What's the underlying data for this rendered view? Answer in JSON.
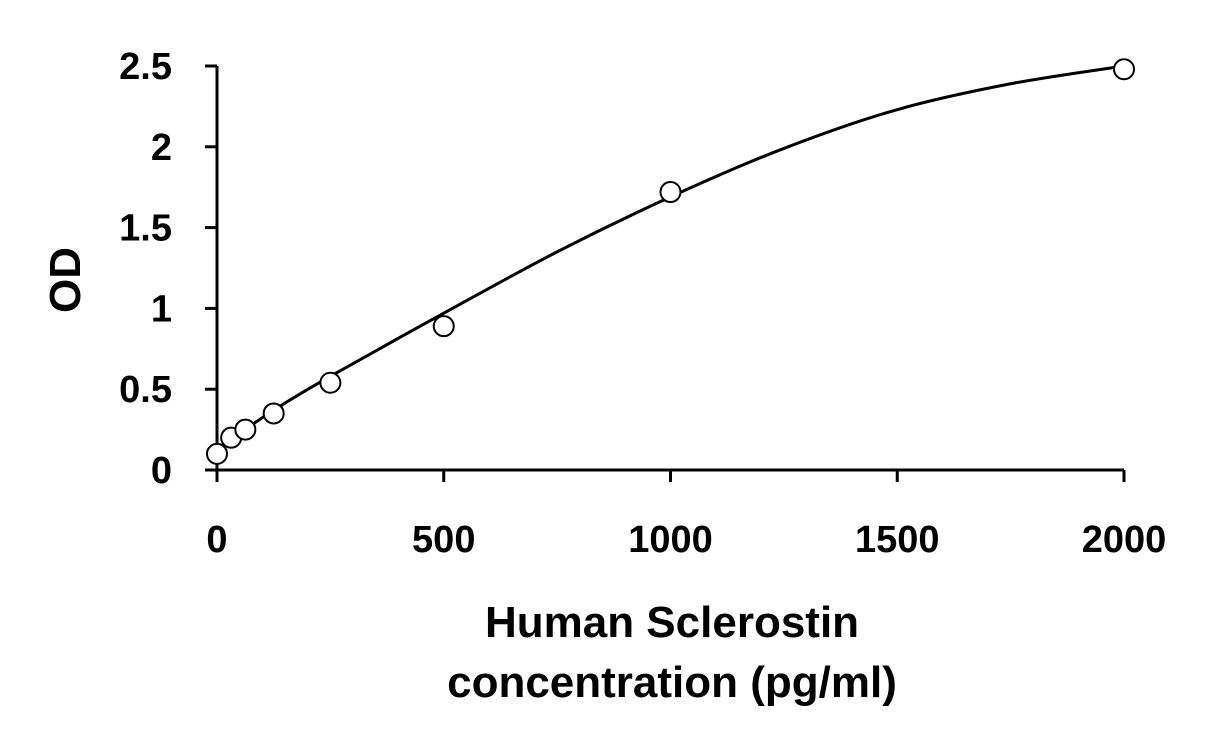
{
  "chart_data": {
    "type": "scatter",
    "title": "",
    "xlabel_lines": [
      "Human Sclerostin",
      "concentration (pg/ml)"
    ],
    "ylabel": "OD",
    "xlim": [
      0,
      2000
    ],
    "ylim": [
      0,
      2.5
    ],
    "x_ticks": [
      0,
      500,
      1000,
      1500,
      2000
    ],
    "x_tick_labels": [
      "0",
      "500",
      "1000",
      "1500",
      "2000"
    ],
    "y_ticks": [
      0,
      0.5,
      1,
      1.5,
      2,
      2.5
    ],
    "y_tick_labels": [
      "0",
      "0.5",
      "1",
      "1.5",
      "2",
      "2.5"
    ],
    "grid": false,
    "legend": "none",
    "marker": "open-circle",
    "series": [
      {
        "x": [
          0,
          31.25,
          62.5,
          125,
          250,
          500,
          1000,
          2000
        ],
        "y": [
          0.1,
          0.2,
          0.25,
          0.35,
          0.54,
          0.89,
          1.72,
          2.48
        ]
      }
    ],
    "fit_curve": {
      "type": "smooth-line",
      "x": [
        0,
        125,
        250,
        500,
        750,
        1000,
        1250,
        1500,
        1750,
        2000
      ],
      "y": [
        0.13,
        0.37,
        0.58,
        0.97,
        1.35,
        1.69,
        1.99,
        2.23,
        2.39,
        2.5
      ]
    },
    "colors": {
      "line": "#000000",
      "marker_stroke": "#000000",
      "marker_fill": "#ffffff"
    }
  }
}
